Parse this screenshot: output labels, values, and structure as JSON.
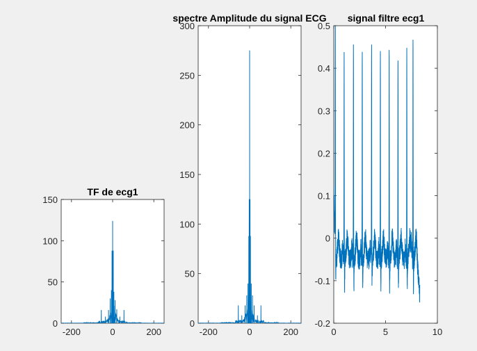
{
  "colors": {
    "figure_bg": "#f0f0f0",
    "axes_bg": "#ffffff",
    "axis": "#262626",
    "series": "#0072bd"
  },
  "chart_data": [
    {
      "type": "line",
      "title": "TF de ecg1",
      "xlabel": "",
      "ylabel": "",
      "xlim": [
        -250,
        250
      ],
      "ylim": [
        0,
        150
      ],
      "xticks": [
        -200,
        0,
        200
      ],
      "yticks": [
        0,
        50,
        100,
        150
      ],
      "grid": false,
      "series": [
        {
          "kind": "spectrum",
          "peaks": [
            {
              "x": 0,
              "y": 124
            },
            {
              "x": -3,
              "y": 88
            },
            {
              "x": 3,
              "y": 88
            },
            {
              "x": -6,
              "y": 40
            },
            {
              "x": 6,
              "y": 38
            },
            {
              "x": -12,
              "y": 30
            },
            {
              "x": 12,
              "y": 28
            },
            {
              "x": -20,
              "y": 16
            },
            {
              "x": 20,
              "y": 17
            },
            {
              "x": -55,
              "y": 16
            },
            {
              "x": 55,
              "y": 16
            },
            {
              "x": -35,
              "y": 8
            },
            {
              "x": 35,
              "y": 8
            }
          ],
          "x_span": [
            -250,
            250
          ]
        }
      ]
    },
    {
      "type": "line",
      "title": "spectre Amplitude du signal ECG",
      "xlabel": "",
      "ylabel": "",
      "xlim": [
        -250,
        250
      ],
      "ylim": [
        0,
        300
      ],
      "xticks": [
        -200,
        0,
        200
      ],
      "yticks": [
        0,
        50,
        100,
        150,
        200,
        250,
        300
      ],
      "grid": false,
      "series": [
        {
          "kind": "spectrum",
          "peaks": [
            {
              "x": 0,
              "y": 275
            },
            {
              "x": -2,
              "y": 125
            },
            {
              "x": 2,
              "y": 125
            },
            {
              "x": -4,
              "y": 88
            },
            {
              "x": 4,
              "y": 88
            },
            {
              "x": -8,
              "y": 40
            },
            {
              "x": 8,
              "y": 40
            },
            {
              "x": -14,
              "y": 28
            },
            {
              "x": 14,
              "y": 28
            },
            {
              "x": -22,
              "y": 18
            },
            {
              "x": 22,
              "y": 18
            },
            {
              "x": -55,
              "y": 18
            },
            {
              "x": 55,
              "y": 18
            },
            {
              "x": -38,
              "y": 8
            },
            {
              "x": 38,
              "y": 8
            }
          ],
          "x_span": [
            -250,
            250
          ]
        }
      ]
    },
    {
      "type": "line",
      "title": "signal filtre ecg1",
      "xlabel": "",
      "ylabel": "",
      "xlim": [
        0,
        10
      ],
      "ylim": [
        -0.2,
        0.5
      ],
      "xticks": [
        0,
        5,
        10
      ],
      "yticks": [
        -0.2,
        -0.1,
        0,
        0.1,
        0.2,
        0.3,
        0.4,
        0.5
      ],
      "grid": false,
      "series": [
        {
          "kind": "ecg",
          "x_end": 8.3,
          "r_peaks": [
            {
              "x": 0.15,
              "y": 0.48
            },
            {
              "x": 1.0,
              "y": 0.44
            },
            {
              "x": 1.9,
              "y": 0.47
            },
            {
              "x": 2.75,
              "y": 0.46
            },
            {
              "x": 3.65,
              "y": 0.47
            },
            {
              "x": 4.5,
              "y": 0.45
            },
            {
              "x": 5.35,
              "y": 0.44
            },
            {
              "x": 6.2,
              "y": 0.45
            },
            {
              "x": 7.05,
              "y": 0.44
            },
            {
              "x": 7.65,
              "y": 0.5
            }
          ],
          "baseline": -0.05
        }
      ]
    }
  ]
}
